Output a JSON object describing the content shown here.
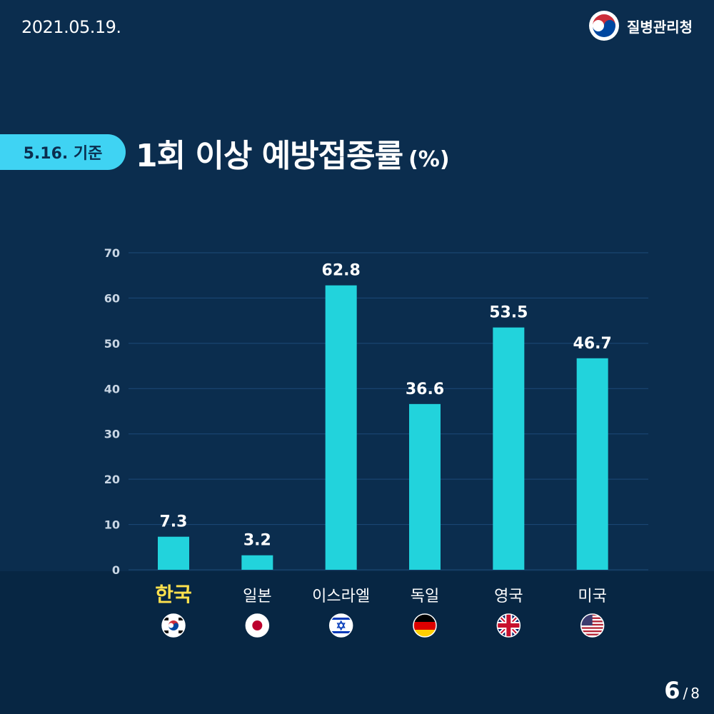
{
  "header": {
    "date": "2021.05.19.",
    "org_name": "질병관리청",
    "logo_icon": "korea-government-emblem-icon"
  },
  "badge": {
    "label": "5.16. 기준"
  },
  "title": {
    "main": "1회 이상 예방접종률",
    "unit": "(%)"
  },
  "colors": {
    "background": "#0b2d4e",
    "bottom_band": "#072643",
    "bar": "#22d3dc",
    "badge": "#3fd3f3",
    "highlight": "#ffe14d",
    "grid": "#1d4a78",
    "tick": "#c9d6e4"
  },
  "chart_data": {
    "type": "bar",
    "title": "1회 이상 예방접종률 (%)",
    "xlabel": "",
    "ylabel": "",
    "categories": [
      "한국",
      "일본",
      "이스라엘",
      "독일",
      "영국",
      "미국"
    ],
    "values": [
      7.3,
      3.2,
      62.8,
      36.6,
      53.5,
      46.7
    ],
    "value_labels": [
      "7.3",
      "3.2",
      "62.8",
      "36.6",
      "53.5",
      "46.7"
    ],
    "highlight_category": "한국",
    "ylim": [
      0,
      70
    ],
    "yticks": [
      0,
      10,
      20,
      30,
      40,
      50,
      60,
      70
    ],
    "grid": true,
    "legend": "none",
    "flag_icons": [
      "south-korea-flag-icon",
      "japan-flag-icon",
      "israel-flag-icon",
      "germany-flag-icon",
      "united-kingdom-flag-icon",
      "united-states-flag-icon"
    ]
  },
  "pagination": {
    "current": "6",
    "separator": "/",
    "total": "8"
  }
}
